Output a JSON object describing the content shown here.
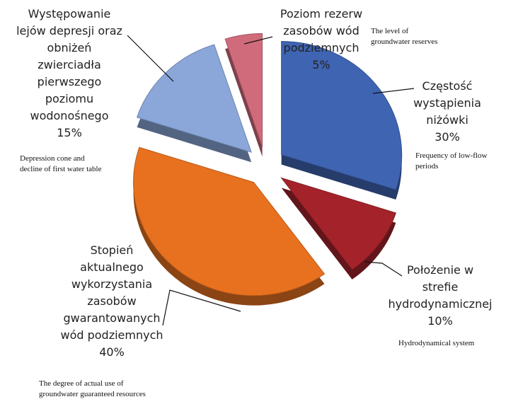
{
  "chart_data": {
    "type": "pie",
    "categories": [
      "Częstość\nwystąpienia\nniżówki",
      "Położenie w\nstrefie\nhydrodynamicznej",
      "Stopień\naktualnego\nwykorzystania\nzasobów\ngwarantowanych\nwód podziemnych",
      "Występowanie\nlejów depresji oraz\nobniżeń\nzwierciadła\npierwszego\npoziomu\nwodonośnego",
      "Poziom rezerw\nzasobów wód\npodziemnych"
    ],
    "values": [
      30,
      10,
      40,
      15,
      5
    ],
    "value_labels": [
      "30%",
      "10%",
      "40%",
      "15%",
      "5%"
    ],
    "colors": [
      "#3f64b2",
      "#a4232b",
      "#e8711f",
      "#8ba6d9",
      "#d06b7b"
    ],
    "annotations": [
      "Frequency of low-flow\nperiods",
      "Hydrodynamical system",
      "The degree of actual use of\ngroundwater guaranteed  resources",
      "Depression cone and\ndecline of first water table",
      "The level of\ngroundwater reserves"
    ]
  }
}
